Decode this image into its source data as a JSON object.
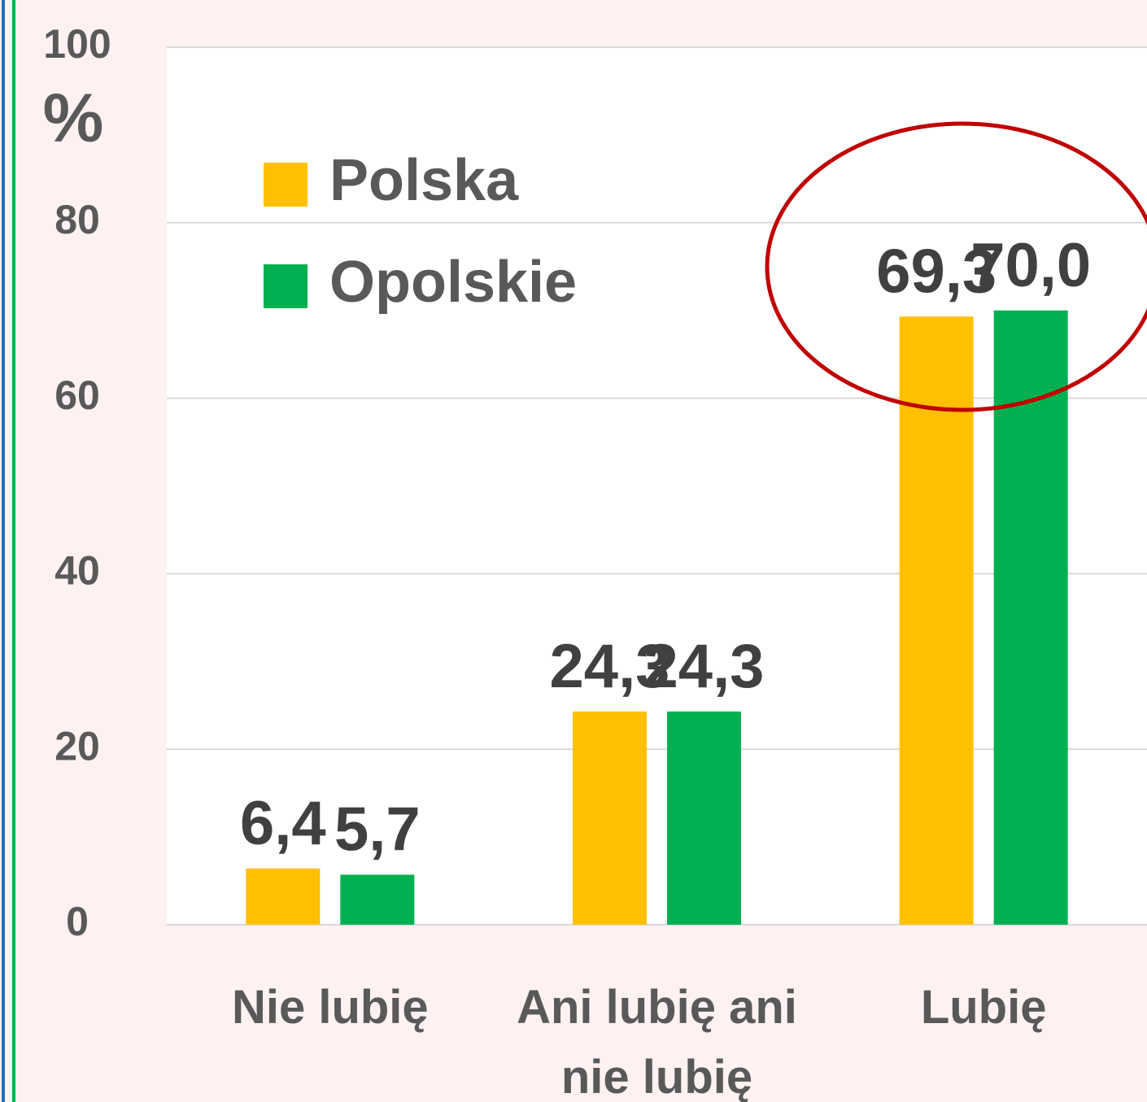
{
  "chart_data": {
    "type": "bar",
    "ylabel": "%",
    "categories": [
      "Nie lubię",
      "Ani lubię ani nie lubię",
      "Lubię"
    ],
    "series": [
      {
        "name": "Polska",
        "color": "#ffc000",
        "values": [
          6.4,
          24.3,
          69.3
        ],
        "value_labels": [
          "6,4",
          "24,3",
          "69,3"
        ]
      },
      {
        "name": "Opolskie",
        "color": "#00b050",
        "values": [
          5.7,
          24.3,
          70.0
        ],
        "value_labels": [
          "5,7",
          "24,3",
          "70,0"
        ]
      }
    ],
    "ylim": [
      0,
      100
    ],
    "yticks": [
      0,
      20,
      40,
      60,
      80,
      100
    ],
    "grid": true,
    "legend": "upper left"
  }
}
